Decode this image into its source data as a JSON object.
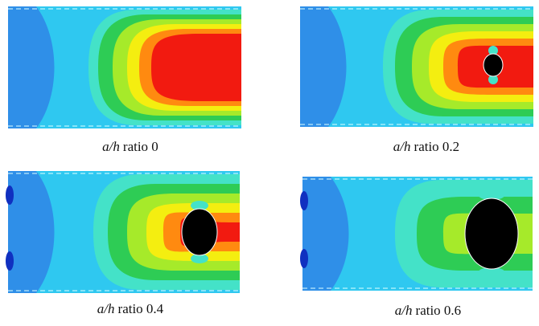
{
  "panels": [
    {
      "variable": "a/h",
      "text": "ratio 0"
    },
    {
      "variable": "a/h",
      "text": "ratio 0.2"
    },
    {
      "variable": "a/h",
      "text": "ratio 0.4"
    },
    {
      "variable": "a/h",
      "text": "ratio 0.6"
    }
  ]
}
